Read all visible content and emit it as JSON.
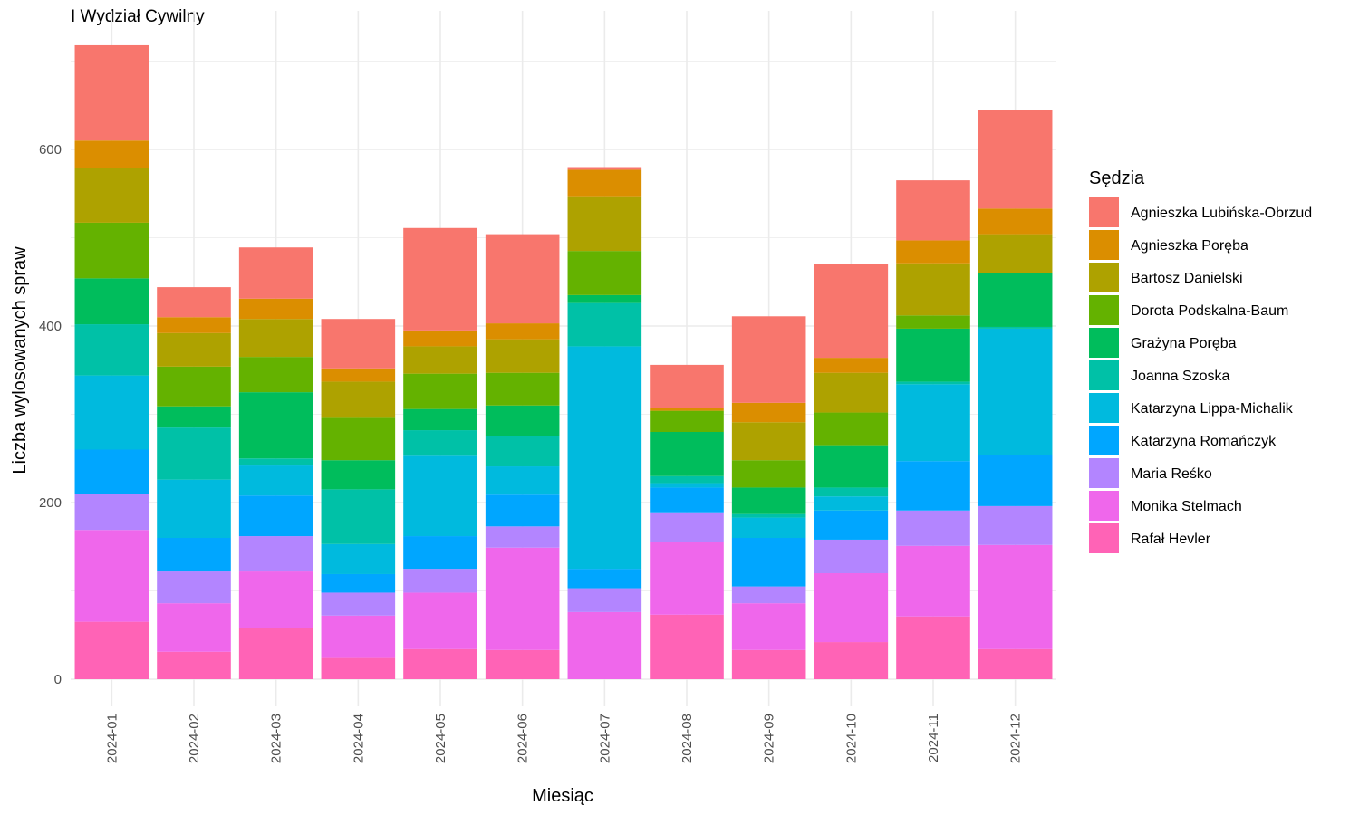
{
  "chart_data": {
    "type": "bar",
    "stacked": true,
    "title": "I Wydział Cywilny",
    "xlabel": "Miesiąc",
    "ylabel": "Liczba wylosowanych spraw",
    "ylim": [
      0,
      740
    ],
    "yticks": [
      0,
      200,
      400,
      600
    ],
    "grid": true,
    "legend_title": "Sędzia",
    "legend_position": "right",
    "categories": [
      "2024-01",
      "2024-02",
      "2024-03",
      "2024-04",
      "2024-05",
      "2024-06",
      "2024-07",
      "2024-08",
      "2024-09",
      "2024-10",
      "2024-11",
      "2024-12"
    ],
    "series": [
      {
        "name": "Agnieszka Lubińska-Obrzud",
        "color": "#F8766D",
        "values": [
          108,
          34,
          58,
          56,
          116,
          101,
          3,
          49,
          98,
          106,
          68,
          112
        ]
      },
      {
        "name": "Agnieszka Poręba",
        "color": "#DB8E00",
        "values": [
          31,
          18,
          23,
          15,
          18,
          18,
          30,
          3,
          22,
          17,
          26,
          29
        ]
      },
      {
        "name": "Bartosz Danielski",
        "color": "#AEA200",
        "values": [
          62,
          38,
          43,
          41,
          31,
          38,
          62,
          0,
          43,
          45,
          59,
          44
        ]
      },
      {
        "name": "Dorota Podskalna-Baum",
        "color": "#64B200",
        "values": [
          63,
          45,
          40,
          48,
          40,
          37,
          50,
          24,
          31,
          37,
          15,
          0
        ]
      },
      {
        "name": "Grażyna Poręba",
        "color": "#00BD5C",
        "values": [
          52,
          24,
          75,
          33,
          24,
          35,
          9,
          50,
          30,
          48,
          60,
          61
        ]
      },
      {
        "name": "Joanna Szoska",
        "color": "#00C1A7",
        "values": [
          58,
          59,
          8,
          62,
          29,
          34,
          49,
          8,
          4,
          10,
          3,
          2
        ]
      },
      {
        "name": "Katarzyna Lippa-Michalik",
        "color": "#00BADE",
        "values": [
          84,
          66,
          34,
          34,
          91,
          32,
          252,
          5,
          23,
          16,
          87,
          143
        ]
      },
      {
        "name": "Katarzyna Romańczyk",
        "color": "#00A6FF",
        "values": [
          50,
          38,
          46,
          21,
          37,
          36,
          22,
          28,
          55,
          33,
          56,
          58
        ]
      },
      {
        "name": "Maria Reśko",
        "color": "#B385FF",
        "values": [
          41,
          36,
          40,
          26,
          27,
          24,
          27,
          34,
          19,
          38,
          40,
          44
        ]
      },
      {
        "name": "Monika Stelmach",
        "color": "#EF67EB",
        "values": [
          104,
          55,
          64,
          48,
          64,
          116,
          76,
          82,
          53,
          78,
          80,
          118
        ]
      },
      {
        "name": "Rafał Hevler",
        "color": "#FF63B6",
        "values": [
          65,
          31,
          58,
          24,
          34,
          33,
          0,
          73,
          33,
          42,
          71,
          34
        ]
      }
    ]
  }
}
